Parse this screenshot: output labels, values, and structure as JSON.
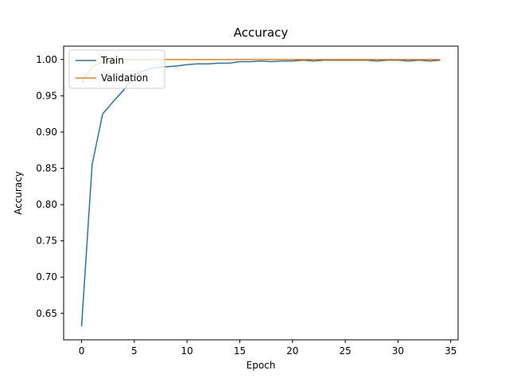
{
  "chart_data": {
    "type": "line",
    "title": "Accuracy",
    "xlabel": "Epoch",
    "ylabel": "Accuracy",
    "xlim": [
      -1.7,
      35.7
    ],
    "ylim": [
      0.6136,
      1.0184
    ],
    "xticks": [
      0,
      5,
      10,
      15,
      20,
      25,
      30,
      35
    ],
    "yticks": [
      0.65,
      0.7,
      0.75,
      0.8,
      0.85,
      0.9,
      0.95,
      1.0
    ],
    "grid": false,
    "legend_position": "upper-left",
    "x": [
      0,
      1,
      2,
      3,
      4,
      5,
      6,
      7,
      8,
      9,
      10,
      11,
      12,
      13,
      14,
      15,
      16,
      17,
      18,
      19,
      20,
      21,
      22,
      23,
      24,
      25,
      26,
      27,
      28,
      29,
      30,
      31,
      32,
      33,
      34
    ],
    "series": [
      {
        "name": "Train",
        "color": "#1f77b4",
        "values": [
          0.632,
          0.855,
          0.925,
          0.942,
          0.958,
          0.978,
          0.985,
          0.989,
          0.99,
          0.991,
          0.993,
          0.994,
          0.994,
          0.995,
          0.995,
          0.997,
          0.997,
          0.998,
          0.997,
          0.998,
          0.998,
          0.999,
          0.998,
          0.999,
          0.999,
          0.999,
          0.999,
          0.999,
          0.998,
          0.999,
          0.999,
          0.998,
          0.999,
          0.998,
          0.999
        ]
      },
      {
        "name": "Validation",
        "color": "#ff7f0e",
        "values": [
          0.968,
          0.99,
          0.997,
          1.0,
          1.0,
          1.0,
          1.0,
          1.0,
          1.0,
          1.0,
          1.0,
          1.0,
          1.0,
          1.0,
          1.0,
          1.0,
          1.0,
          1.0,
          1.0,
          1.0,
          1.0,
          1.0,
          1.0,
          1.0,
          1.0,
          1.0,
          1.0,
          1.0,
          1.0,
          1.0,
          1.0,
          1.0,
          1.0,
          1.0,
          1.0
        ]
      }
    ]
  },
  "legend": {
    "entries": [
      "Train",
      "Validation"
    ]
  }
}
